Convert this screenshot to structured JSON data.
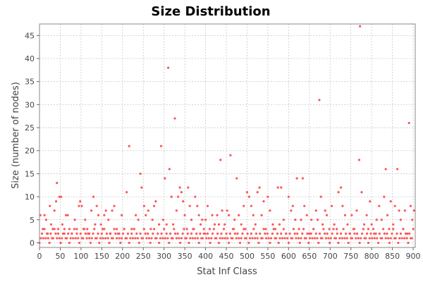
{
  "chart_data": {
    "type": "scatter",
    "title": "Size Distribution",
    "xlabel": "Stat Inf Class",
    "ylabel": "Size (number of nodes)",
    "xlim": [
      0,
      905
    ],
    "ylim": [
      -1,
      47.5
    ],
    "x_ticks": [
      0,
      50,
      100,
      150,
      200,
      250,
      300,
      350,
      400,
      450,
      500,
      550,
      600,
      650,
      700,
      750,
      800,
      850,
      900
    ],
    "y_ticks": [
      0,
      5,
      10,
      15,
      20,
      25,
      30,
      35,
      40,
      45
    ],
    "grid": true,
    "legend": "none",
    "colors": {
      "points": "#ff5555",
      "grid": "#c8c8c8",
      "plot_border": "#888888",
      "background": "#ffffff"
    },
    "series": [
      {
        "points": [
          [
            2,
            6
          ],
          [
            8,
            3
          ],
          [
            12,
            6
          ],
          [
            16,
            5
          ],
          [
            20,
            2
          ],
          [
            25,
            8
          ],
          [
            28,
            4
          ],
          [
            32,
            3
          ],
          [
            36,
            7
          ],
          [
            40,
            9
          ],
          [
            42,
            13
          ],
          [
            45,
            3
          ],
          [
            48,
            10
          ],
          [
            52,
            10
          ],
          [
            55,
            4
          ],
          [
            60,
            2
          ],
          [
            64,
            6
          ],
          [
            68,
            6
          ],
          [
            72,
            3
          ],
          [
            78,
            2
          ],
          [
            85,
            5
          ],
          [
            90,
            3
          ],
          [
            95,
            8
          ],
          [
            98,
            9
          ],
          [
            102,
            8
          ],
          [
            106,
            3
          ],
          [
            110,
            5
          ],
          [
            115,
            3
          ],
          [
            120,
            2
          ],
          [
            125,
            7
          ],
          [
            130,
            10
          ],
          [
            134,
            4
          ],
          [
            138,
            8
          ],
          [
            142,
            6
          ],
          [
            148,
            4
          ],
          [
            152,
            3
          ],
          [
            156,
            6
          ],
          [
            160,
            7
          ],
          [
            166,
            5
          ],
          [
            170,
            2
          ],
          [
            175,
            7
          ],
          [
            180,
            8
          ],
          [
            186,
            3
          ],
          [
            192,
            2
          ],
          [
            198,
            6
          ],
          [
            204,
            3
          ],
          [
            210,
            11
          ],
          [
            216,
            21
          ],
          [
            222,
            3
          ],
          [
            228,
            3
          ],
          [
            232,
            6
          ],
          [
            238,
            5
          ],
          [
            243,
            15
          ],
          [
            246,
            12
          ],
          [
            252,
            8
          ],
          [
            256,
            6
          ],
          [
            262,
            7
          ],
          [
            268,
            3
          ],
          [
            272,
            5
          ],
          [
            276,
            8
          ],
          [
            280,
            9
          ],
          [
            288,
            4
          ],
          [
            293,
            21
          ],
          [
            298,
            5
          ],
          [
            302,
            14
          ],
          [
            306,
            4
          ],
          [
            310,
            38
          ],
          [
            313,
            16
          ],
          [
            318,
            10
          ],
          [
            322,
            4
          ],
          [
            326,
            27
          ],
          [
            330,
            7
          ],
          [
            334,
            10
          ],
          [
            338,
            12
          ],
          [
            342,
            11
          ],
          [
            346,
            9
          ],
          [
            350,
            6
          ],
          [
            355,
            3
          ],
          [
            358,
            12
          ],
          [
            362,
            8
          ],
          [
            366,
            5
          ],
          [
            370,
            3
          ],
          [
            375,
            10
          ],
          [
            380,
            8
          ],
          [
            384,
            6
          ],
          [
            388,
            4
          ],
          [
            392,
            5
          ],
          [
            396,
            2
          ],
          [
            400,
            5
          ],
          [
            405,
            8
          ],
          [
            410,
            3
          ],
          [
            416,
            6
          ],
          [
            422,
            4
          ],
          [
            428,
            6
          ],
          [
            432,
            4
          ],
          [
            436,
            18
          ],
          [
            440,
            7
          ],
          [
            446,
            4
          ],
          [
            452,
            7
          ],
          [
            456,
            6
          ],
          [
            460,
            19
          ],
          [
            466,
            3
          ],
          [
            470,
            5
          ],
          [
            475,
            14
          ],
          [
            480,
            6
          ],
          [
            486,
            4
          ],
          [
            492,
            8
          ],
          [
            496,
            3
          ],
          [
            500,
            11
          ],
          [
            505,
            10
          ],
          [
            510,
            8
          ],
          [
            515,
            6
          ],
          [
            520,
            4
          ],
          [
            525,
            11
          ],
          [
            530,
            12
          ],
          [
            535,
            6
          ],
          [
            540,
            9
          ],
          [
            545,
            3
          ],
          [
            550,
            10
          ],
          [
            555,
            7
          ],
          [
            562,
            4
          ],
          [
            568,
            3
          ],
          [
            574,
            12
          ],
          [
            578,
            4
          ],
          [
            582,
            12
          ],
          [
            588,
            5
          ],
          [
            594,
            2
          ],
          [
            600,
            10
          ],
          [
            606,
            7
          ],
          [
            610,
            8
          ],
          [
            616,
            5
          ],
          [
            620,
            14
          ],
          [
            625,
            3
          ],
          [
            630,
            5
          ],
          [
            634,
            14
          ],
          [
            638,
            8
          ],
          [
            644,
            6
          ],
          [
            650,
            2
          ],
          [
            655,
            5
          ],
          [
            660,
            3
          ],
          [
            666,
            7
          ],
          [
            670,
            5
          ],
          [
            674,
            31
          ],
          [
            678,
            10
          ],
          [
            682,
            4
          ],
          [
            688,
            7
          ],
          [
            692,
            6
          ],
          [
            698,
            3
          ],
          [
            704,
            8
          ],
          [
            710,
            4
          ],
          [
            716,
            3
          ],
          [
            720,
            11
          ],
          [
            726,
            12
          ],
          [
            730,
            8
          ],
          [
            736,
            6
          ],
          [
            742,
            4
          ],
          [
            748,
            2
          ],
          [
            752,
            6
          ],
          [
            758,
            3
          ],
          [
            764,
            7
          ],
          [
            770,
            18
          ],
          [
            772,
            47
          ],
          [
            776,
            11
          ],
          [
            782,
            4
          ],
          [
            788,
            6
          ],
          [
            792,
            3
          ],
          [
            796,
            9
          ],
          [
            800,
            4
          ],
          [
            806,
            2
          ],
          [
            812,
            5
          ],
          [
            818,
            8
          ],
          [
            824,
            5
          ],
          [
            830,
            10
          ],
          [
            834,
            16
          ],
          [
            838,
            6
          ],
          [
            842,
            3
          ],
          [
            846,
            9
          ],
          [
            852,
            4
          ],
          [
            856,
            8
          ],
          [
            862,
            16
          ],
          [
            866,
            7
          ],
          [
            870,
            5
          ],
          [
            876,
            3
          ],
          [
            880,
            7
          ],
          [
            886,
            2
          ],
          [
            890,
            26
          ],
          [
            894,
            8
          ],
          [
            898,
            5
          ],
          [
            902,
            7
          ]
        ],
        "baseline_points": {
          "x_start": 0,
          "x_end": 900,
          "step": 3,
          "values_cycle": [
            0,
            1,
            2,
            1,
            3,
            1,
            2,
            1,
            0,
            2,
            1,
            1,
            3,
            2,
            1,
            2,
            1,
            0,
            1,
            2,
            3,
            1,
            1,
            2
          ]
        }
      }
    ]
  }
}
